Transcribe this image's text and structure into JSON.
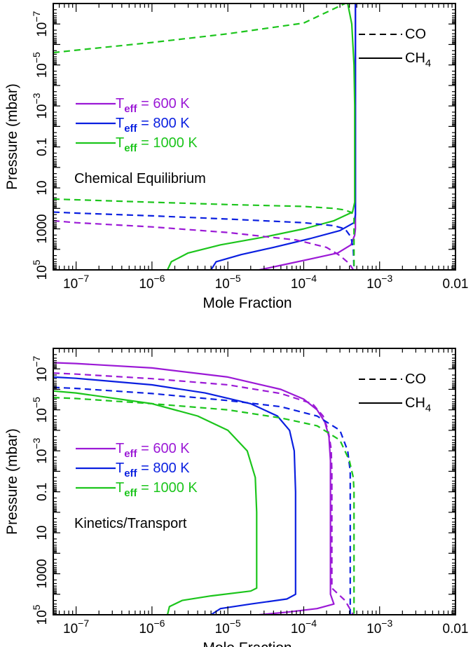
{
  "colors": {
    "Teff_600": "#9B19D6",
    "Teff_800": "#0A1FE0",
    "Teff_1000": "#1CC51C",
    "axis": "#000000"
  },
  "chart_data": [
    {
      "type": "line",
      "panel": "top",
      "annotation": "Chemical Equilibrium",
      "xlabel": "Mole Fraction",
      "ylabel": "Pressure (mbar)",
      "xscale": "log",
      "yscale": "log",
      "y_inverted": true,
      "xlim": [
        5e-08,
        0.01
      ],
      "ylim": [
        100000.0,
        1e-08
      ],
      "x_ticks": [
        {
          "v": 1e-07,
          "base": "10",
          "exp": "−7"
        },
        {
          "v": 1e-06,
          "base": "10",
          "exp": "−6"
        },
        {
          "v": 1e-05,
          "base": "10",
          "exp": "−5"
        },
        {
          "v": 0.0001,
          "base": "10",
          "exp": "−4"
        },
        {
          "v": 0.001,
          "base": "10",
          "exp": "−3"
        },
        {
          "v": 0.01,
          "base": "0.01",
          "exp": ""
        }
      ],
      "y_ticks": [
        {
          "v": 1e-07,
          "base": "10",
          "exp": "−7"
        },
        {
          "v": 1e-05,
          "base": "10",
          "exp": "−5"
        },
        {
          "v": 0.001,
          "base": "10",
          "exp": "−3"
        },
        {
          "v": 0.1,
          "base": "0.1",
          "exp": ""
        },
        {
          "v": 10,
          "base": "10",
          "exp": ""
        },
        {
          "v": 1000,
          "base": "1000",
          "exp": ""
        },
        {
          "v": 100000.0,
          "base": "10",
          "exp": "5"
        }
      ],
      "species_legend": [
        {
          "label": "CO",
          "sub": "",
          "dash": true
        },
        {
          "label": "CH",
          "sub": "4",
          "dash": false
        }
      ],
      "teff_legend": [
        {
          "color_key": "Teff_600",
          "prefix": "T",
          "sub": "eff",
          "value": " = 600 K"
        },
        {
          "color_key": "Teff_800",
          "prefix": "T",
          "sub": "eff",
          "value": " = 800 K"
        },
        {
          "color_key": "Teff_1000",
          "prefix": "T",
          "sub": "eff",
          "value": " = 1000 K"
        }
      ],
      "series": [
        {
          "species": "CH4",
          "color_key": "Teff_600",
          "dashed": false,
          "points": [
            [
              2.6e-05,
              100000.0
            ],
            [
              5e-05,
              60000.0
            ],
            [
              0.00012,
              30000.0
            ],
            [
              0.00028,
              15000.0
            ],
            [
              0.00042,
              6000
            ],
            [
              0.00047,
              2000
            ],
            [
              0.00048,
              1000
            ],
            [
              0.00048,
              1e-08
            ]
          ]
        },
        {
          "species": "CH4",
          "color_key": "Teff_800",
          "dashed": false,
          "points": [
            [
              6e-06,
              100000.0
            ],
            [
              7e-06,
              40000.0
            ],
            [
              1.5e-05,
              18000.0
            ],
            [
              4e-05,
              8000
            ],
            [
              0.00012,
              3000
            ],
            [
              0.0003,
              1200
            ],
            [
              0.00046,
              500
            ],
            [
              0.00048,
              200
            ],
            [
              0.00048,
              1e-08
            ]
          ]
        },
        {
          "species": "CH4",
          "color_key": "Teff_1000",
          "dashed": false,
          "points": [
            [
              1.6e-06,
              100000.0
            ],
            [
              1.8e-06,
              40000.0
            ],
            [
              3e-06,
              15000.0
            ],
            [
              8e-06,
              6000
            ],
            [
              3e-05,
              2500
            ],
            [
              0.0001,
              1000
            ],
            [
              0.00025,
              400
            ],
            [
              0.00044,
              150
            ],
            [
              0.00047,
              50
            ],
            [
              0.00047,
              0.001
            ],
            [
              0.00046,
              1e-05
            ],
            [
              0.00043,
              1e-07
            ],
            [
              0.00038,
              1e-08
            ]
          ]
        },
        {
          "species": "CO",
          "color_key": "Teff_600",
          "dashed": true,
          "points": [
            [
              5e-08,
              400
            ],
            [
              1e-07,
              500
            ],
            [
              1e-06,
              800
            ],
            [
              1e-05,
              1500
            ],
            [
              8e-05,
              3500
            ],
            [
              0.0002,
              8000
            ],
            [
              0.0003,
              20000.0
            ],
            [
              0.0004,
              50000.0
            ],
            [
              0.00045,
              100000.0
            ]
          ]
        },
        {
          "species": "CO",
          "color_key": "Teff_800",
          "dashed": true,
          "points": [
            [
              5e-08,
              150
            ],
            [
              1e-07,
              170
            ],
            [
              1e-06,
              230
            ],
            [
              1e-05,
              330
            ],
            [
              0.0001,
              500
            ],
            [
              0.00025,
              700
            ],
            [
              0.00035,
              1000
            ],
            [
              0.00042,
              2500
            ],
            [
              0.00045,
              10000.0
            ],
            [
              0.00046,
              100000.0
            ]
          ]
        },
        {
          "species": "CO",
          "color_key": "Teff_1000",
          "dashed": true,
          "points": [
            [
              5e-08,
              35
            ],
            [
              1e-07,
              38
            ],
            [
              1e-06,
              50
            ],
            [
              1e-05,
              65
            ],
            [
              0.0001,
              80
            ],
            [
              0.00025,
              100
            ],
            [
              0.00035,
              120
            ],
            [
              0.00043,
              160
            ],
            [
              0.00046,
              300
            ],
            [
              0.00046,
              100000.0
            ]
          ]
        },
        {
          "species": "CO",
          "color_key": "Teff_1000",
          "dashed": true,
          "points": [
            [
              5e-08,
              2.5e-06
            ],
            [
              1e-07,
              1.9e-06
            ],
            [
              1e-06,
              8e-07
            ],
            [
              1e-05,
              3e-07
            ],
            [
              0.0001,
              9e-08
            ],
            [
              0.00035,
              1e-08
            ]
          ]
        }
      ]
    },
    {
      "type": "line",
      "panel": "bottom",
      "annotation": "Kinetics/Transport",
      "xlabel": "Mole Fraction",
      "ylabel": "Pressure (mbar)",
      "xscale": "log",
      "yscale": "log",
      "y_inverted": true,
      "xlim": [
        5e-08,
        0.01
      ],
      "ylim": [
        100000.0,
        1e-08
      ],
      "x_ticks": [
        {
          "v": 1e-07,
          "base": "10",
          "exp": "−7"
        },
        {
          "v": 1e-06,
          "base": "10",
          "exp": "−6"
        },
        {
          "v": 1e-05,
          "base": "10",
          "exp": "−5"
        },
        {
          "v": 0.0001,
          "base": "10",
          "exp": "−4"
        },
        {
          "v": 0.001,
          "base": "10",
          "exp": "−3"
        },
        {
          "v": 0.01,
          "base": "0.01",
          "exp": ""
        }
      ],
      "y_ticks": [
        {
          "v": 1e-07,
          "base": "10",
          "exp": "−7"
        },
        {
          "v": 1e-05,
          "base": "10",
          "exp": "−5"
        },
        {
          "v": 0.001,
          "base": "10",
          "exp": "−3"
        },
        {
          "v": 0.1,
          "base": "0.1",
          "exp": ""
        },
        {
          "v": 10,
          "base": "10",
          "exp": ""
        },
        {
          "v": 1000,
          "base": "1000",
          "exp": ""
        },
        {
          "v": 100000.0,
          "base": "10",
          "exp": "5"
        }
      ],
      "species_legend": [
        {
          "label": "CO",
          "sub": "",
          "dash": true
        },
        {
          "label": "CH",
          "sub": "4",
          "dash": false
        }
      ],
      "teff_legend": [
        {
          "color_key": "Teff_600",
          "prefix": "T",
          "sub": "eff",
          "value": " = 600 K"
        },
        {
          "color_key": "Teff_800",
          "prefix": "T",
          "sub": "eff",
          "value": " = 800 K"
        },
        {
          "color_key": "Teff_1000",
          "prefix": "T",
          "sub": "eff",
          "value": " = 1000 K"
        }
      ],
      "series": [
        {
          "species": "CH4",
          "color_key": "Teff_600",
          "dashed": false,
          "points": [
            [
              5e-08,
              5e-08
            ],
            [
              1e-07,
              5.5e-08
            ],
            [
              1e-06,
              9e-08
            ],
            [
              1e-05,
              2.5e-07
            ],
            [
              5e-05,
              1e-06
            ],
            [
              0.0001,
              3e-06
            ],
            [
              0.00015,
              1e-05
            ],
            [
              0.00019,
              4e-05
            ],
            [
              0.000215,
              0.0002
            ],
            [
              0.000225,
              0.003
            ],
            [
              0.000225,
              10000.0
            ],
            [
              0.00025,
              30000.0
            ],
            [
              0.00015,
              50000.0
            ],
            [
              6e-05,
              75000.0
            ],
            [
              2.6e-05,
              100000.0
            ]
          ]
        },
        {
          "species": "CH4",
          "color_key": "Teff_800",
          "dashed": false,
          "points": [
            [
              5e-08,
              2.5e-07
            ],
            [
              1e-07,
              2.9e-07
            ],
            [
              1e-06,
              6e-07
            ],
            [
              5e-06,
              1.5e-06
            ],
            [
              2e-05,
              5e-06
            ],
            [
              4.5e-05,
              2e-05
            ],
            [
              6.5e-05,
              0.0001
            ],
            [
              7.5e-05,
              0.001
            ],
            [
              7.8e-05,
              0.1
            ],
            [
              7.8e-05,
              10000.0
            ],
            [
              6e-05,
              17000.0
            ],
            [
              2e-05,
              30000.0
            ],
            [
              8e-06,
              50000.0
            ],
            [
              6e-06,
              100000.0
            ]
          ]
        },
        {
          "species": "CH4",
          "color_key": "Teff_1000",
          "dashed": false,
          "points": [
            [
              5e-08,
              1.2e-06
            ],
            [
              1e-07,
              1.5e-06
            ],
            [
              1e-06,
              5e-06
            ],
            [
              4e-06,
              2e-05
            ],
            [
              1e-05,
              0.0001
            ],
            [
              1.8e-05,
              0.001
            ],
            [
              2.3e-05,
              0.02
            ],
            [
              2.4e-05,
              1
            ],
            [
              2.4e-05,
              5000
            ],
            [
              2e-05,
              7000
            ],
            [
              6e-06,
              12000.0
            ],
            [
              2.5e-06,
              20000.0
            ],
            [
              1.7e-06,
              40000.0
            ],
            [
              1.6e-06,
              100000.0
            ]
          ]
        },
        {
          "species": "CO",
          "color_key": "Teff_600",
          "dashed": true,
          "points": [
            [
              5e-08,
              1.6e-07
            ],
            [
              1e-07,
              1.8e-07
            ],
            [
              1e-06,
              3e-07
            ],
            [
              1e-05,
              6e-07
            ],
            [
              5e-05,
              1.6e-06
            ],
            [
              0.00013,
              5e-06
            ],
            [
              0.00018,
              2e-05
            ],
            [
              0.00021,
              0.0001
            ],
            [
              0.00023,
              0.0008
            ],
            [
              0.000235,
              0.01
            ],
            [
              0.000235,
              5000
            ],
            [
              0.00035,
              20000.0
            ],
            [
              0.00045,
              100000.0
            ]
          ]
        },
        {
          "species": "CO",
          "color_key": "Teff_800",
          "dashed": true,
          "points": [
            [
              5e-08,
              8e-07
            ],
            [
              1e-07,
              9e-07
            ],
            [
              1e-06,
              1.6e-06
            ],
            [
              1e-05,
              3.5e-06
            ],
            [
              5e-05,
              7e-06
            ],
            [
              0.00015,
              2e-05
            ],
            [
              0.0003,
              0.0001
            ],
            [
              0.00038,
              0.001
            ],
            [
              0.00041,
              0.01
            ],
            [
              0.00041,
              100000.0
            ]
          ]
        },
        {
          "species": "CO",
          "color_key": "Teff_1000",
          "dashed": true,
          "points": [
            [
              5e-08,
              2.5e-06
            ],
            [
              1e-07,
              2.8e-06
            ],
            [
              1e-06,
              5e-06
            ],
            [
              1e-05,
              1e-05
            ],
            [
              5e-05,
              2.5e-05
            ],
            [
              0.00015,
              6e-05
            ],
            [
              0.0003,
              0.0003
            ],
            [
              0.0004,
              0.003
            ],
            [
              0.00045,
              0.02
            ],
            [
              0.00046,
              0.1
            ],
            [
              0.00046,
              100000.0
            ]
          ]
        }
      ]
    }
  ]
}
